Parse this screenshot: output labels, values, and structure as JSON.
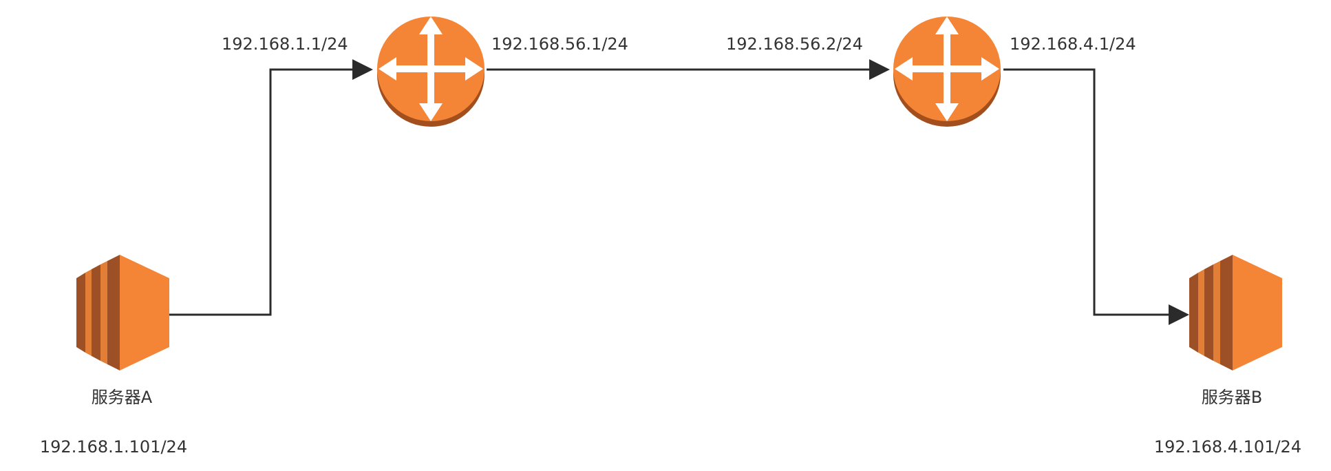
{
  "colors": {
    "device_orange": "#F58536",
    "device_shadow": "#A34E1D",
    "server_dark": "#9D5025",
    "server_stripe": "#E27E35",
    "arrow_white": "#FFFFFF",
    "link_line": "#2B2B2B",
    "label_text": "#333333"
  },
  "routers": [
    {
      "icon": "router-icon",
      "left_ip": "192.168.1.1/24",
      "right_ip": "192.168.56.1/24"
    },
    {
      "icon": "router-icon",
      "left_ip": "192.168.56.2/24",
      "right_ip": "192.168.4.1/24"
    }
  ],
  "servers": [
    {
      "icon": "server-icon",
      "name": "服务器A",
      "ip": "192.168.1.101/24"
    },
    {
      "icon": "server-icon",
      "name": "服务器B",
      "ip": "192.168.4.101/24"
    }
  ]
}
